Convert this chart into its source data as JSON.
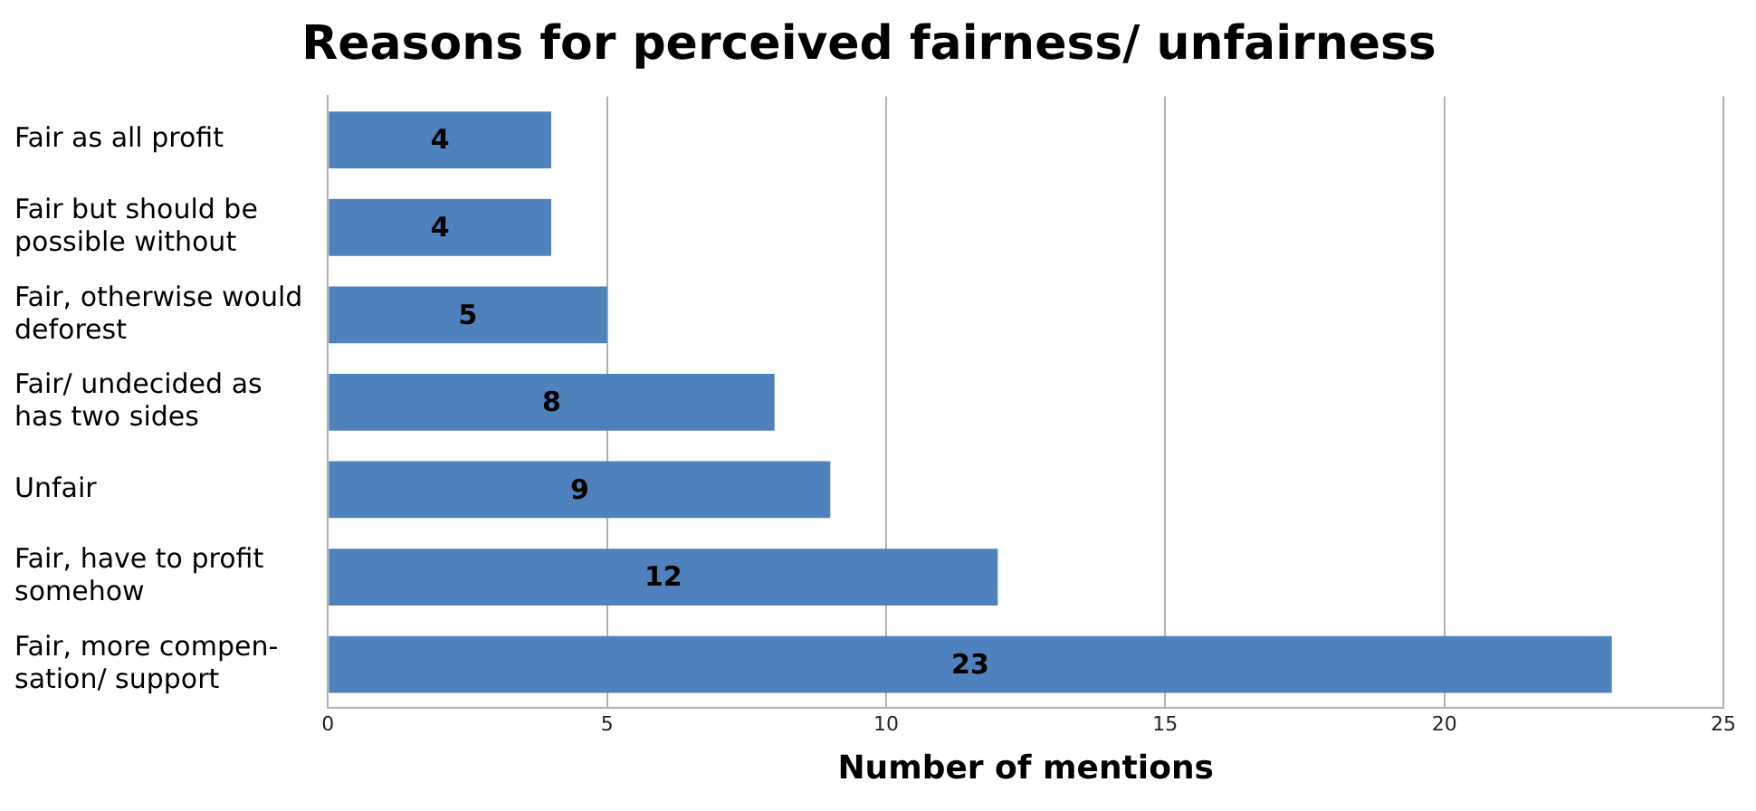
{
  "chart_data": {
    "type": "bar",
    "orientation": "horizontal",
    "title": "Reasons for perceived fairness/ unfairness",
    "xlabel": "Number of mentions",
    "categories": [
      "Fair as all profit",
      "Fair but should be\npossible without",
      "Fair, otherwise would\ndeforest",
      "Fair/ undecided as\nhas two sides",
      "Unfair",
      "Fair, have to profit\nsomehow",
      "Fair, more compen-\nsation/ support"
    ],
    "values": [
      4,
      4,
      5,
      8,
      9,
      12,
      23
    ],
    "color": "#4f81bd",
    "xlim": [
      0,
      25
    ],
    "xticks": [
      0,
      5,
      10,
      15,
      20,
      25
    ],
    "grid": "x",
    "data_labels": true,
    "legend": false
  }
}
